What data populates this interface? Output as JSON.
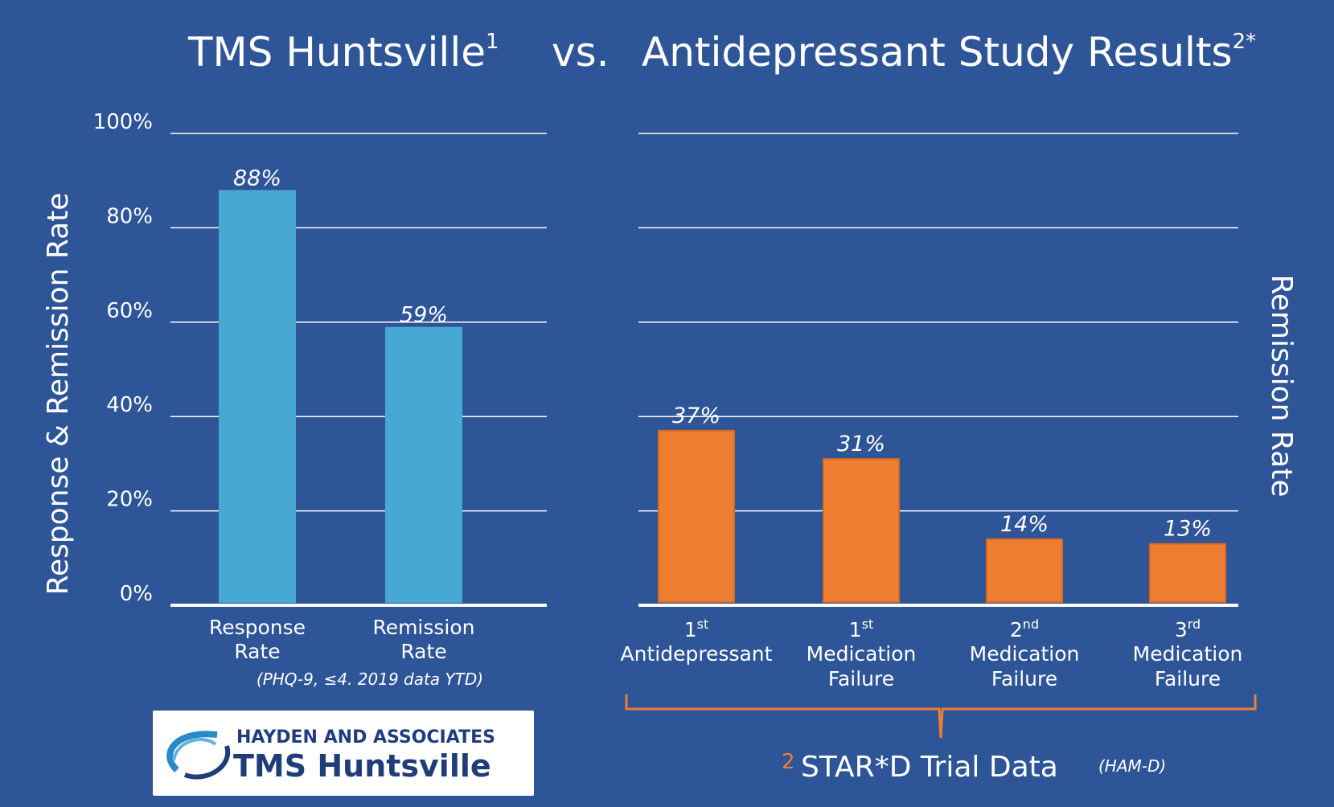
{
  "colors": {
    "background": "#2e5597",
    "tms_bar": "#47a9d3",
    "antidepressant_bar": "#ee7f32",
    "brace": "#ee7f32",
    "logo_text": "#1f3d7a",
    "logo_swoosh": "#2a8ac4"
  },
  "title": {
    "left": "TMS Huntsville",
    "left_sup": "1",
    "vs": "vs.",
    "right": "Antidepressant Study Results",
    "right_sup": "2*"
  },
  "footnotes": {
    "left_note": "(PHQ-9, ≤4.  2019 data YTD)",
    "right_sup": "2",
    "right_note": "STAR*D Trial Data",
    "right_note_sub": "(HAM-D)"
  },
  "logo": {
    "line1": "HAYDEN AND ASSOCIATES",
    "line2": "TMS Huntsville"
  },
  "chart_data": [
    {
      "type": "bar",
      "ylabel": "Response & Remission Rate",
      "ylim": [
        0,
        100
      ],
      "yticks": [
        "0%",
        "20%",
        "40%",
        "60%",
        "80%",
        "100%"
      ],
      "grid": true,
      "categories": [
        {
          "line1": "Response",
          "line2": "Rate"
        },
        {
          "line1": "Remission",
          "line2": "Rate"
        }
      ],
      "values": [
        88,
        59
      ],
      "value_labels": [
        "88%",
        "59%"
      ]
    },
    {
      "type": "bar",
      "ylabel": "Remission Rate",
      "ylim": [
        0,
        100
      ],
      "grid": true,
      "categories": [
        {
          "ord": "1",
          "sup": "st",
          "line2": "Antidepressant",
          "line3": ""
        },
        {
          "ord": "1",
          "sup": "st",
          "line2": "Medication",
          "line3": "Failure"
        },
        {
          "ord": "2",
          "sup": "nd",
          "line2": "Medication",
          "line3": "Failure"
        },
        {
          "ord": "3",
          "sup": "rd",
          "line2": "Medication",
          "line3": "Failure"
        }
      ],
      "values": [
        37,
        31,
        14,
        13
      ],
      "value_labels": [
        "37%",
        "31%",
        "14%",
        "13%"
      ]
    }
  ]
}
